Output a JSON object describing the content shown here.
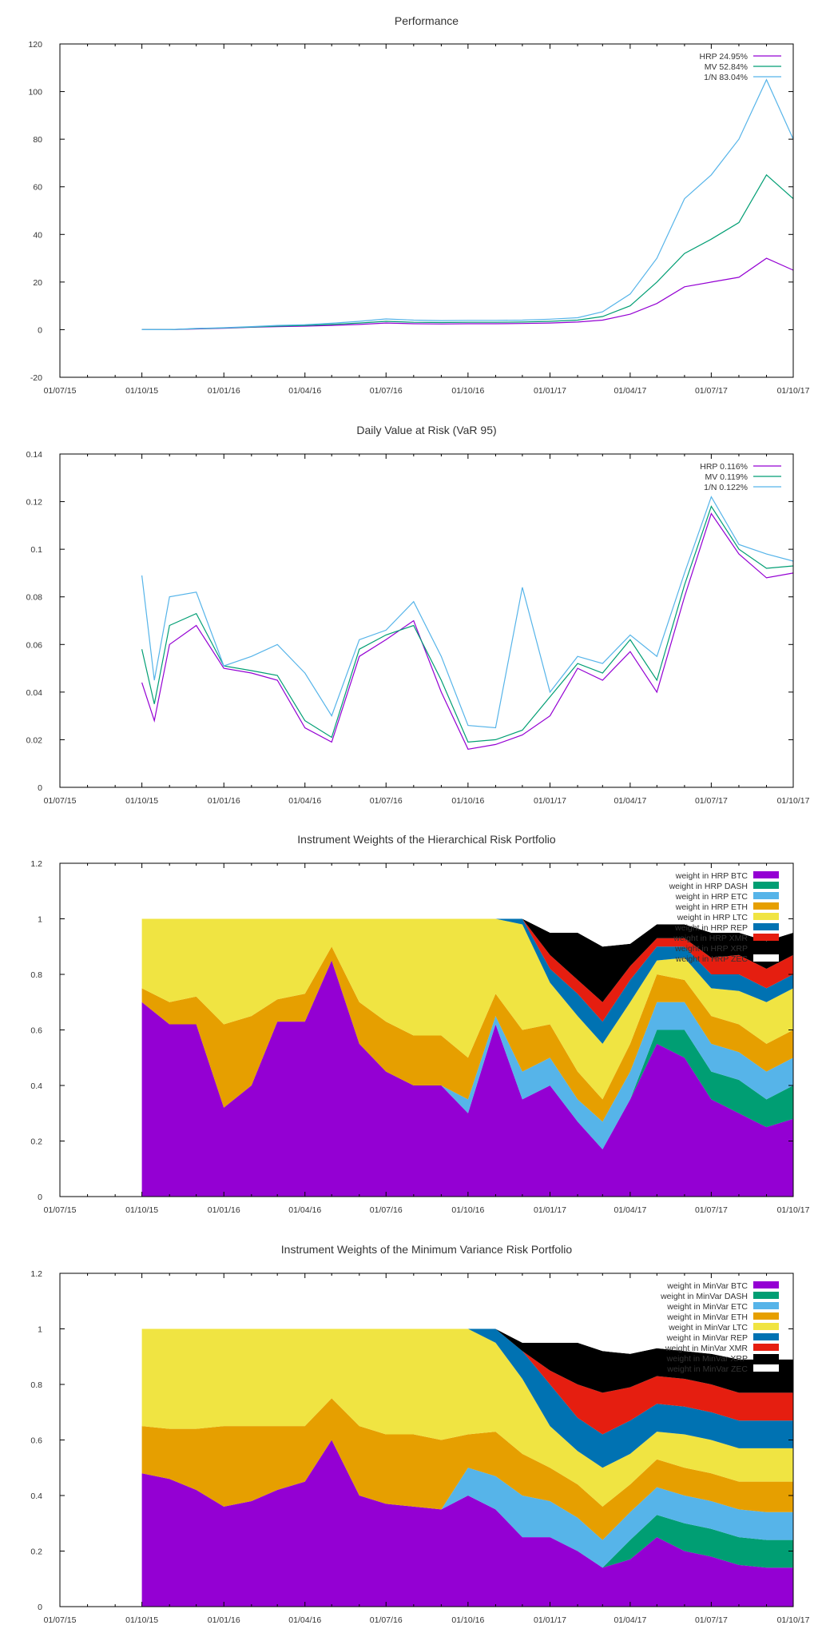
{
  "colors": {
    "HRP": "#9400d3",
    "MV": "#009e73",
    "1/N": "#56b4e9",
    "BTC": "#9400d3",
    "DASH": "#009e73",
    "ETC": "#56b4e9",
    "ETH": "#e69f00",
    "LTC": "#f0e442",
    "REP": "#0072b2",
    "XMR": "#e51e10",
    "XRP": "#000000",
    "ZEC": "#ffffff"
  },
  "chart_data": [
    {
      "type": "line",
      "title": "Performance",
      "ylim": [
        -20,
        120
      ],
      "yticks": [
        "-20",
        "0",
        "20",
        "40",
        "60",
        "80",
        "100",
        "120"
      ],
      "xticks": [
        "01/07/15",
        "01/10/15",
        "01/01/16",
        "01/04/16",
        "01/07/16",
        "01/10/16",
        "01/01/17",
        "01/04/17",
        "01/07/17",
        "01/10/17"
      ],
      "legend_position": "top-right",
      "x": [
        "01/10/15",
        "01/11/15",
        "01/12/15",
        "01/01/16",
        "01/02/16",
        "01/03/16",
        "01/04/16",
        "01/05/16",
        "01/06/16",
        "01/07/16",
        "01/08/16",
        "01/09/16",
        "01/10/16",
        "01/11/16",
        "01/12/16",
        "01/01/17",
        "01/02/17",
        "01/03/17",
        "01/04/17",
        "01/05/17",
        "01/06/17",
        "01/07/17",
        "01/08/17",
        "01/09/17",
        "01/10/17"
      ],
      "series": [
        {
          "name": "HRP 24.95%",
          "key": "HRP",
          "values": [
            0,
            0,
            0.3,
            0.6,
            1.0,
            1.3,
            1.5,
            1.8,
            2.2,
            2.8,
            2.5,
            2.4,
            2.5,
            2.5,
            2.6,
            2.8,
            3.2,
            4.0,
            6.5,
            11,
            18,
            20,
            22,
            30,
            25
          ]
        },
        {
          "name": "MV 52.84%",
          "key": "MV",
          "values": [
            0,
            0,
            0.4,
            0.7,
            1.1,
            1.5,
            1.8,
            2.2,
            2.8,
            3.5,
            3.1,
            3.0,
            3.1,
            3.1,
            3.2,
            3.5,
            4.0,
            5.5,
            10,
            20,
            32,
            38,
            45,
            65,
            55
          ]
        },
        {
          "name": "1/N 83.04%",
          "key": "1/N",
          "values": [
            0,
            0,
            0.5,
            0.8,
            1.3,
            1.8,
            2.1,
            2.7,
            3.5,
            4.5,
            4.0,
            3.8,
            3.9,
            3.9,
            4.0,
            4.4,
            5.0,
            7.5,
            15,
            30,
            55,
            65,
            80,
            105,
            80
          ]
        }
      ]
    },
    {
      "type": "line",
      "title": "Daily Value at Risk (VaR 95)",
      "ylim": [
        0,
        0.14
      ],
      "yticks": [
        "0",
        "0.02",
        "0.04",
        "0.06",
        "0.08",
        "0.1",
        "0.12",
        "0.14"
      ],
      "xticks": [
        "01/07/15",
        "01/10/15",
        "01/01/16",
        "01/04/16",
        "01/07/16",
        "01/10/16",
        "01/01/17",
        "01/04/17",
        "01/07/17",
        "01/10/17"
      ],
      "legend_position": "top-right",
      "x": [
        "01/10/15",
        "15/10/15",
        "01/11/15",
        "01/12/15",
        "01/01/16",
        "01/02/16",
        "01/03/16",
        "01/04/16",
        "01/05/16",
        "01/06/16",
        "01/07/16",
        "01/08/16",
        "01/09/16",
        "01/10/16",
        "01/11/16",
        "01/12/16",
        "01/01/17",
        "01/02/17",
        "01/03/17",
        "01/04/17",
        "01/05/17",
        "01/06/17",
        "01/07/17",
        "01/08/17",
        "01/09/17",
        "01/10/17"
      ],
      "series": [
        {
          "name": "HRP 0.116%",
          "key": "HRP",
          "values": [
            0.044,
            0.028,
            0.06,
            0.068,
            0.05,
            0.048,
            0.045,
            0.025,
            0.019,
            0.055,
            0.062,
            0.07,
            0.04,
            0.016,
            0.018,
            0.022,
            0.03,
            0.05,
            0.045,
            0.057,
            0.04,
            0.08,
            0.115,
            0.098,
            0.088,
            0.09
          ]
        },
        {
          "name": "MV 0.119%",
          "key": "MV",
          "values": [
            0.058,
            0.035,
            0.068,
            0.073,
            0.051,
            0.049,
            0.047,
            0.028,
            0.021,
            0.058,
            0.064,
            0.068,
            0.045,
            0.019,
            0.02,
            0.024,
            0.038,
            0.052,
            0.048,
            0.062,
            0.045,
            0.085,
            0.118,
            0.1,
            0.092,
            0.093
          ]
        },
        {
          "name": "1/N 0.122%",
          "key": "1/N",
          "values": [
            0.089,
            0.045,
            0.08,
            0.082,
            0.051,
            0.055,
            0.06,
            0.048,
            0.03,
            0.062,
            0.066,
            0.078,
            0.055,
            0.026,
            0.025,
            0.084,
            0.04,
            0.055,
            0.052,
            0.064,
            0.055,
            0.09,
            0.122,
            0.102,
            0.098,
            0.095
          ]
        }
      ]
    },
    {
      "type": "area",
      "stacked": true,
      "title": "Instrument Weights of the Hierarchical Risk Portfolio",
      "ylim": [
        0,
        1.2
      ],
      "yticks": [
        "0",
        "0.2",
        "0.4",
        "0.6",
        "0.8",
        "1",
        "1.2"
      ],
      "xticks": [
        "01/07/15",
        "01/10/15",
        "01/01/16",
        "01/04/16",
        "01/07/16",
        "01/10/16",
        "01/01/17",
        "01/04/17",
        "01/07/17",
        "01/10/17"
      ],
      "legend_position": "top-right",
      "x": [
        "01/10/15",
        "01/11/15",
        "01/12/15",
        "01/01/16",
        "01/02/16",
        "01/03/16",
        "01/04/16",
        "01/05/16",
        "01/06/16",
        "01/07/16",
        "01/08/16",
        "01/09/16",
        "01/10/16",
        "01/11/16",
        "01/12/16",
        "01/01/17",
        "01/02/17",
        "01/03/17",
        "01/04/17",
        "01/05/17",
        "01/06/17",
        "01/07/17",
        "01/08/17",
        "01/09/17",
        "01/10/17"
      ],
      "series": [
        {
          "name": "weight in HRP BTC",
          "key": "BTC",
          "values": [
            0.7,
            0.62,
            0.62,
            0.32,
            0.4,
            0.63,
            0.63,
            0.85,
            0.55,
            0.45,
            0.4,
            0.4,
            0.3,
            0.62,
            0.35,
            0.4,
            0.27,
            0.17,
            0.35,
            0.55,
            0.5,
            0.35,
            0.3,
            0.25,
            0.28
          ]
        },
        {
          "name": "weight in HRP DASH",
          "key": "DASH",
          "values": [
            0,
            0,
            0,
            0,
            0,
            0,
            0,
            0,
            0,
            0,
            0,
            0,
            0,
            0,
            0,
            0,
            0,
            0,
            0,
            0.05,
            0.1,
            0.1,
            0.12,
            0.1,
            0.12
          ]
        },
        {
          "name": "weight in HRP ETC",
          "key": "ETC",
          "values": [
            0,
            0,
            0,
            0,
            0,
            0,
            0,
            0,
            0,
            0,
            0,
            0,
            0.05,
            0.03,
            0.1,
            0.1,
            0.08,
            0.1,
            0.1,
            0.1,
            0.1,
            0.1,
            0.1,
            0.1,
            0.1
          ]
        },
        {
          "name": "weight in HRP ETH",
          "key": "ETH",
          "values": [
            0.05,
            0.08,
            0.1,
            0.3,
            0.25,
            0.08,
            0.1,
            0.05,
            0.15,
            0.18,
            0.18,
            0.18,
            0.15,
            0.08,
            0.15,
            0.12,
            0.1,
            0.08,
            0.1,
            0.1,
            0.08,
            0.1,
            0.1,
            0.1,
            0.1
          ]
        },
        {
          "name": "weight in HRP LTC",
          "key": "LTC",
          "values": [
            0.25,
            0.3,
            0.28,
            0.38,
            0.35,
            0.29,
            0.27,
            0.1,
            0.3,
            0.37,
            0.42,
            0.42,
            0.5,
            0.27,
            0.38,
            0.15,
            0.2,
            0.2,
            0.15,
            0.05,
            0.08,
            0.1,
            0.12,
            0.15,
            0.15
          ]
        },
        {
          "name": "weight in HRP REP",
          "key": "REP",
          "values": [
            0,
            0,
            0,
            0,
            0,
            0,
            0,
            0,
            0,
            0,
            0,
            0,
            0,
            0,
            0.02,
            0.05,
            0.08,
            0.08,
            0.08,
            0.05,
            0.04,
            0.05,
            0.06,
            0.05,
            0.05
          ]
        },
        {
          "name": "weight in HRP XMR",
          "key": "XMR",
          "values": [
            0,
            0,
            0,
            0,
            0,
            0,
            0,
            0,
            0,
            0,
            0,
            0,
            0,
            0,
            0,
            0.05,
            0.05,
            0.07,
            0.05,
            0.03,
            0.03,
            0.06,
            0.07,
            0.07,
            0.07
          ]
        },
        {
          "name": "weight in HRP XRP",
          "key": "XRP",
          "values": [
            0,
            0,
            0,
            0,
            0,
            0,
            0,
            0,
            0,
            0,
            0,
            0,
            0,
            0,
            0,
            0.08,
            0.17,
            0.2,
            0.08,
            0.05,
            0.05,
            0.09,
            0.08,
            0.1,
            0.08
          ]
        },
        {
          "name": "weight in HRP ZEC",
          "key": "ZEC",
          "values": [
            0,
            0,
            0,
            0,
            0,
            0,
            0,
            0,
            0,
            0,
            0,
            0,
            0,
            0,
            0,
            0.05,
            0.05,
            0.1,
            0.09,
            0.02,
            0.02,
            0.05,
            0.05,
            0.08,
            0.05
          ]
        }
      ]
    },
    {
      "type": "area",
      "stacked": true,
      "title": "Instrument Weights of the Minimum Variance Risk Portfolio",
      "ylim": [
        0,
        1.2
      ],
      "yticks": [
        "0",
        "0.2",
        "0.4",
        "0.6",
        "0.8",
        "1",
        "1.2"
      ],
      "xticks": [
        "01/07/15",
        "01/10/15",
        "01/01/16",
        "01/04/16",
        "01/07/16",
        "01/10/16",
        "01/01/17",
        "01/04/17",
        "01/07/17",
        "01/10/17"
      ],
      "legend_position": "top-right",
      "x": [
        "01/10/15",
        "01/11/15",
        "01/12/15",
        "01/01/16",
        "01/02/16",
        "01/03/16",
        "01/04/16",
        "01/05/16",
        "01/06/16",
        "01/07/16",
        "01/08/16",
        "01/09/16",
        "01/10/16",
        "01/11/16",
        "01/12/16",
        "01/01/17",
        "01/02/17",
        "01/03/17",
        "01/04/17",
        "01/05/17",
        "01/06/17",
        "01/07/17",
        "01/08/17",
        "01/09/17",
        "01/10/17"
      ],
      "series": [
        {
          "name": "weight in MinVar BTC",
          "key": "BTC",
          "values": [
            0.48,
            0.46,
            0.42,
            0.36,
            0.38,
            0.42,
            0.45,
            0.6,
            0.4,
            0.37,
            0.36,
            0.35,
            0.4,
            0.35,
            0.25,
            0.25,
            0.2,
            0.14,
            0.17,
            0.25,
            0.2,
            0.18,
            0.15,
            0.14,
            0.14
          ]
        },
        {
          "name": "weight in MinVar DASH",
          "key": "DASH",
          "values": [
            0,
            0,
            0,
            0,
            0,
            0,
            0,
            0,
            0,
            0,
            0,
            0,
            0,
            0,
            0,
            0,
            0,
            0,
            0.07,
            0.08,
            0.1,
            0.1,
            0.1,
            0.1,
            0.1
          ]
        },
        {
          "name": "weight in MinVar ETC",
          "key": "ETC",
          "values": [
            0,
            0,
            0,
            0,
            0,
            0,
            0,
            0,
            0,
            0,
            0,
            0,
            0.1,
            0.12,
            0.15,
            0.13,
            0.12,
            0.1,
            0.1,
            0.1,
            0.1,
            0.1,
            0.1,
            0.1,
            0.1
          ]
        },
        {
          "name": "weight in MinVar ETH",
          "key": "ETH",
          "values": [
            0.17,
            0.18,
            0.22,
            0.29,
            0.27,
            0.23,
            0.2,
            0.15,
            0.25,
            0.25,
            0.26,
            0.25,
            0.12,
            0.16,
            0.15,
            0.12,
            0.12,
            0.12,
            0.1,
            0.1,
            0.1,
            0.1,
            0.1,
            0.11,
            0.11
          ]
        },
        {
          "name": "weight in MinVar LTC",
          "key": "LTC",
          "values": [
            0.35,
            0.36,
            0.36,
            0.35,
            0.35,
            0.35,
            0.35,
            0.25,
            0.35,
            0.38,
            0.38,
            0.4,
            0.38,
            0.32,
            0.27,
            0.15,
            0.12,
            0.14,
            0.11,
            0.1,
            0.12,
            0.12,
            0.12,
            0.12,
            0.12
          ]
        },
        {
          "name": "weight in MinVar REP",
          "key": "REP",
          "values": [
            0,
            0,
            0,
            0,
            0,
            0,
            0,
            0,
            0,
            0,
            0,
            0,
            0,
            0.05,
            0.1,
            0.15,
            0.12,
            0.12,
            0.12,
            0.1,
            0.1,
            0.1,
            0.1,
            0.1,
            0.1
          ]
        },
        {
          "name": "weight in MinVar XMR",
          "key": "XMR",
          "values": [
            0,
            0,
            0,
            0,
            0,
            0,
            0,
            0,
            0,
            0,
            0,
            0,
            0,
            0,
            0,
            0.05,
            0.12,
            0.15,
            0.12,
            0.1,
            0.1,
            0.1,
            0.1,
            0.1,
            0.1
          ]
        },
        {
          "name": "weight in MinVar XRP",
          "key": "XRP",
          "values": [
            0,
            0,
            0,
            0,
            0,
            0,
            0,
            0,
            0,
            0,
            0,
            0,
            0,
            0,
            0.03,
            0.1,
            0.15,
            0.15,
            0.12,
            0.1,
            0.1,
            0.11,
            0.12,
            0.12,
            0.12
          ]
        },
        {
          "name": "weight in MinVar ZEC",
          "key": "ZEC",
          "values": [
            0,
            0,
            0,
            0,
            0,
            0,
            0,
            0,
            0,
            0,
            0,
            0,
            0,
            0,
            0.05,
            0.05,
            0.05,
            0.08,
            0.09,
            0.07,
            0.08,
            0.09,
            0.11,
            0.11,
            0.11
          ]
        }
      ]
    }
  ]
}
